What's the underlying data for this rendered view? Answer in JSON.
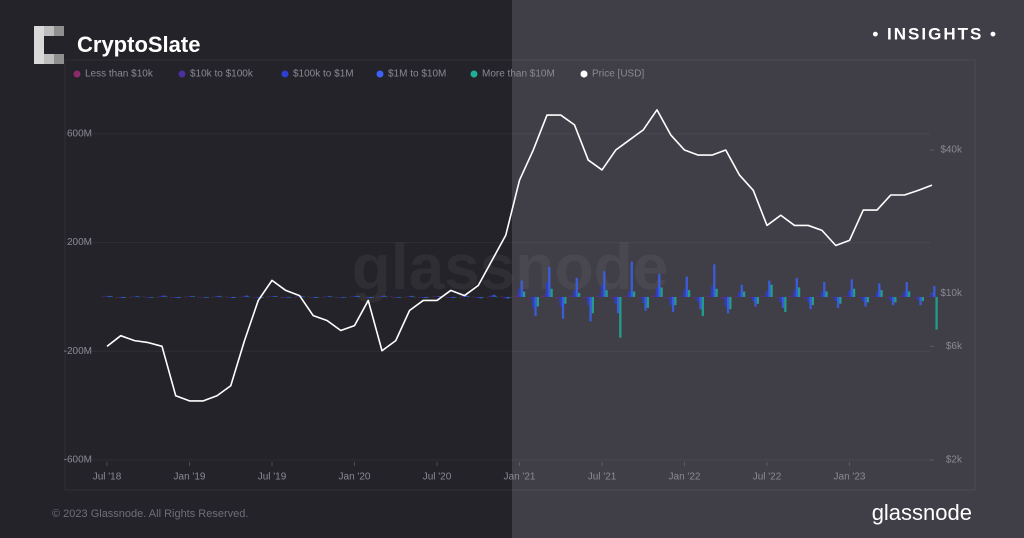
{
  "brand": "CryptoSlate",
  "badge": "• INSIGHTS •",
  "copyright": "© 2023 Glassnode. All Rights Reserved.",
  "footer_logo": "glassnode",
  "watermark": "glassnode",
  "chart_data": {
    "type": "bar-line",
    "x": [
      "2018-07",
      "2018-08",
      "2018-09",
      "2018-10",
      "2018-11",
      "2018-12",
      "2019-01",
      "2019-02",
      "2019-03",
      "2019-04",
      "2019-05",
      "2019-06",
      "2019-07",
      "2019-08",
      "2019-09",
      "2019-10",
      "2019-11",
      "2019-12",
      "2020-01",
      "2020-02",
      "2020-03",
      "2020-04",
      "2020-05",
      "2020-06",
      "2020-07",
      "2020-08",
      "2020-09",
      "2020-10",
      "2020-11",
      "2020-12",
      "2021-01",
      "2021-02",
      "2021-03",
      "2021-04",
      "2021-05",
      "2021-06",
      "2021-07",
      "2021-08",
      "2021-09",
      "2021-10",
      "2021-11",
      "2021-12",
      "2022-01",
      "2022-02",
      "2022-03",
      "2022-04",
      "2022-05",
      "2022-06",
      "2022-07",
      "2022-08",
      "2022-09",
      "2022-10",
      "2022-11",
      "2022-12",
      "2023-01",
      "2023-02",
      "2023-03",
      "2023-04",
      "2023-05",
      "2023-06",
      "2023-07"
    ],
    "xlim": [
      "2018-07",
      "2023-07"
    ],
    "xticks": [
      {
        "value": "2018-07",
        "label": "Jul '18"
      },
      {
        "value": "2019-01",
        "label": "Jan '19"
      },
      {
        "value": "2019-07",
        "label": "Jul '19"
      },
      {
        "value": "2020-01",
        "label": "Jan '20"
      },
      {
        "value": "2020-07",
        "label": "Jul '20"
      },
      {
        "value": "2021-01",
        "label": "Jan '21"
      },
      {
        "value": "2021-07",
        "label": "Jul '21"
      },
      {
        "value": "2022-01",
        "label": "Jan '22"
      },
      {
        "value": "2022-07",
        "label": "Jul '22"
      },
      {
        "value": "2023-01",
        "label": "Jan '23"
      }
    ],
    "ylim": [
      -600,
      780
    ],
    "yticks": [
      {
        "value": -600,
        "label": "-600M"
      },
      {
        "value": -200,
        "label": "-200M"
      },
      {
        "value": 200,
        "label": "200M"
      },
      {
        "value": 600,
        "label": "600M"
      }
    ],
    "y2lim": [
      2000,
      75000
    ],
    "y2scale": "log",
    "y2ticks": [
      {
        "value": 2000,
        "label": "$2k"
      },
      {
        "value": 6000,
        "label": "$6k"
      },
      {
        "value": 10000,
        "label": "$10k"
      },
      {
        "value": 40000,
        "label": "$40k"
      }
    ],
    "grid": true,
    "series": [
      {
        "name": "Less than $10k",
        "color": "#8a2c6a",
        "values": [
          1,
          -1,
          0,
          1,
          -1,
          0,
          1,
          -1,
          0,
          1,
          -1,
          0,
          1,
          -1,
          0,
          1,
          -1,
          0,
          1,
          -1,
          0,
          1,
          -1,
          0,
          1,
          -1,
          0,
          1,
          -1,
          2,
          3,
          -2,
          4,
          -3,
          2,
          -2,
          3,
          -2,
          2,
          -1,
          3,
          -2,
          2,
          -2,
          3,
          -3,
          2,
          -1,
          2,
          -2,
          3,
          -2,
          2,
          -1,
          2,
          -2,
          1,
          -1,
          2,
          -1,
          1
        ]
      },
      {
        "name": "$10k to $100k",
        "color": "#4a2fa0",
        "values": [
          2,
          -2,
          1,
          -1,
          2,
          -2,
          1,
          -1,
          2,
          -2,
          1,
          -1,
          2,
          -2,
          1,
          -1,
          2,
          -2,
          1,
          -1,
          2,
          -2,
          1,
          -1,
          2,
          -2,
          1,
          -1,
          3,
          -3,
          8,
          -10,
          12,
          -9,
          7,
          -6,
          10,
          -8,
          6,
          -5,
          9,
          -7,
          6,
          -6,
          8,
          -9,
          5,
          -4,
          6,
          -5,
          7,
          -6,
          5,
          -4,
          6,
          -5,
          4,
          -4,
          5,
          -3,
          4
        ]
      },
      {
        "name": "$100k to $1M",
        "color": "#2c3fd0",
        "values": [
          3,
          -3,
          2,
          -2,
          4,
          -3,
          2,
          -2,
          3,
          -3,
          4,
          -4,
          2,
          -2,
          3,
          -3,
          2,
          -2,
          3,
          -3,
          4,
          -2,
          3,
          -3,
          2,
          -3,
          4,
          -4,
          6,
          -5,
          30,
          -40,
          55,
          -35,
          25,
          -30,
          45,
          -25,
          20,
          -22,
          35,
          -30,
          28,
          -20,
          40,
          -35,
          18,
          -15,
          22,
          -20,
          25,
          -18,
          20,
          -15,
          24,
          -16,
          18,
          -14,
          20,
          -12,
          15
        ]
      },
      {
        "name": "$1M to $10M",
        "color": "#3a62f5",
        "values": [
          4,
          -4,
          3,
          -3,
          5,
          -4,
          3,
          -3,
          4,
          -4,
          5,
          -5,
          3,
          -3,
          4,
          -4,
          3,
          -3,
          4,
          -4,
          5,
          -3,
          4,
          -4,
          3,
          -4,
          5,
          -5,
          8,
          -6,
          60,
          -70,
          110,
          -80,
          70,
          -90,
          95,
          -60,
          130,
          -50,
          85,
          -55,
          75,
          -45,
          120,
          -60,
          45,
          -35,
          60,
          -40,
          70,
          -45,
          55,
          -40,
          65,
          -35,
          50,
          -30,
          55,
          -30,
          40
        ]
      },
      {
        "name": "More than $10M",
        "color": "#1fae98",
        "values": [
          2,
          -1,
          1,
          -2,
          1,
          -1,
          2,
          -1,
          1,
          -2,
          1,
          -1,
          2,
          -1,
          1,
          -2,
          1,
          -1,
          2,
          -1,
          1,
          -2,
          1,
          -1,
          2,
          -1,
          1,
          -2,
          1,
          -1,
          20,
          -35,
          30,
          -25,
          15,
          -60,
          25,
          -150,
          20,
          -40,
          35,
          -30,
          25,
          -70,
          30,
          -45,
          20,
          -25,
          45,
          -55,
          35,
          -30,
          20,
          -25,
          30,
          -20,
          25,
          -20,
          20,
          -15,
          -120
        ]
      },
      {
        "name": "Price [USD]",
        "color": "#ffffff",
        "axis": "y2",
        "values": [
          6000,
          6650,
          6340,
          6220,
          6000,
          3720,
          3540,
          3540,
          3720,
          4100,
          6340,
          9350,
          11350,
          10300,
          9800,
          8070,
          7700,
          6990,
          7330,
          9350,
          5750,
          6340,
          8480,
          9350,
          9350,
          10300,
          9800,
          10800,
          13770,
          17550,
          29900,
          40000,
          56100,
          56100,
          51000,
          36300,
          33000,
          40000,
          44100,
          48600,
          59000,
          46300,
          40000,
          38100,
          38100,
          40000,
          31400,
          27100,
          19300,
          21300,
          19300,
          19300,
          18400,
          15900,
          16700,
          22400,
          22400,
          25900,
          25900,
          27100,
          28500
        ]
      }
    ]
  }
}
